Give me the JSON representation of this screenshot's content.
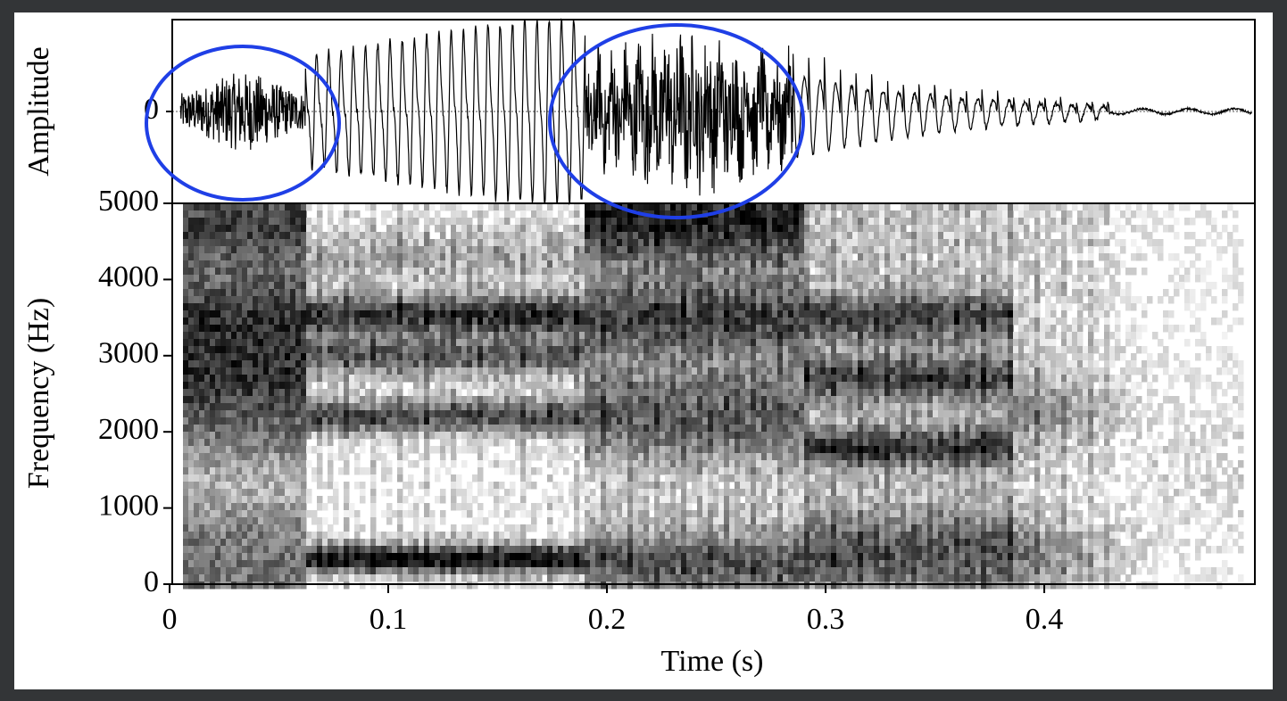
{
  "chart_data": [
    {
      "type": "waveform",
      "y_label": "Amplitude",
      "xlim": [
        0,
        0.4963
      ],
      "ylim": [
        -1,
        1
      ],
      "yticks": [
        0
      ],
      "color": "#000000",
      "grid": true
    },
    {
      "type": "spectrogram",
      "x_label": "Time (s)",
      "y_label": "Frequency (Hz)",
      "xlim": [
        0,
        0.4963
      ],
      "xticks": [
        0,
        0.1,
        0.2,
        0.3,
        0.4
      ],
      "ylim": [
        0,
        5000
      ],
      "yticks": [
        0,
        1000,
        2000,
        3000,
        4000,
        5000
      ]
    }
  ]
}
